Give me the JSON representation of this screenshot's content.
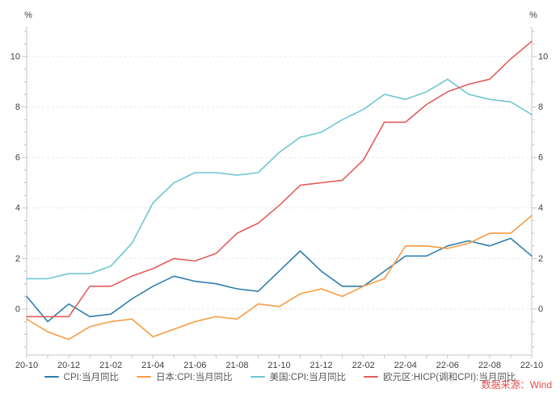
{
  "source_note": "数据来源：Wind",
  "chart_data": {
    "type": "line",
    "title": "",
    "y_unit_left": "%",
    "y_unit_right": "%",
    "x": [
      "20-10",
      "20-11",
      "20-12",
      "21-01",
      "21-02",
      "21-03",
      "21-04",
      "21-05",
      "21-06",
      "21-07",
      "21-08",
      "21-09",
      "21-10",
      "21-11",
      "21-12",
      "22-01",
      "22-02",
      "22-03",
      "22-04",
      "22-05",
      "22-06",
      "22-07",
      "22-08",
      "22-09",
      "22-10"
    ],
    "x_label_every": 2,
    "ylim": [
      -1.82,
      11.18
    ],
    "yticks_labeled": [
      0,
      2,
      4,
      6,
      8,
      10
    ],
    "ytick_minor_step": 0.5,
    "grid": "horizontal-dashed-at-labeled-ticks",
    "legend_position": "bottom-center",
    "axis_color": "#c4c4c4",
    "grid_color": "#e9e9e9",
    "tick_label_color": "#404040",
    "series": [
      {
        "name": "CPI:当月同比",
        "color": "#2f7ead",
        "values": [
          0.5,
          -0.5,
          0.2,
          -0.3,
          -0.2,
          0.4,
          0.9,
          1.3,
          1.1,
          1.0,
          0.8,
          0.7,
          1.5,
          2.3,
          1.5,
          0.9,
          0.9,
          1.5,
          2.1,
          2.1,
          2.5,
          2.7,
          2.5,
          2.8,
          2.1
        ]
      },
      {
        "name": "日本:CPI:当月同比",
        "color": "#f89c42",
        "values": [
          -0.4,
          -0.9,
          -1.2,
          -0.7,
          -0.5,
          -0.4,
          -1.1,
          -0.8,
          -0.5,
          -0.3,
          -0.4,
          0.2,
          0.1,
          0.6,
          0.8,
          0.5,
          0.9,
          1.2,
          2.5,
          2.5,
          2.4,
          2.6,
          3.0,
          3.0,
          3.7
        ]
      },
      {
        "name": "美国:CPI:当月同比",
        "color": "#6fc7cf",
        "values": [
          1.2,
          1.2,
          1.4,
          1.4,
          1.7,
          2.6,
          4.2,
          5.0,
          5.4,
          5.4,
          5.3,
          5.4,
          6.2,
          6.8,
          7.0,
          7.5,
          7.9,
          8.5,
          8.3,
          8.6,
          9.1,
          8.5,
          8.3,
          8.2,
          7.7
        ]
      },
      {
        "name": "欧元区:HICP(调和CPI):当月同比",
        "color": "#e25c5a",
        "values": [
          -0.3,
          -0.3,
          -0.3,
          0.9,
          0.9,
          1.3,
          1.6,
          2.0,
          1.9,
          2.2,
          3.0,
          3.4,
          4.1,
          4.9,
          5.0,
          5.1,
          5.9,
          7.4,
          7.4,
          8.1,
          8.6,
          8.9,
          9.1,
          9.9,
          10.6
        ]
      }
    ]
  }
}
